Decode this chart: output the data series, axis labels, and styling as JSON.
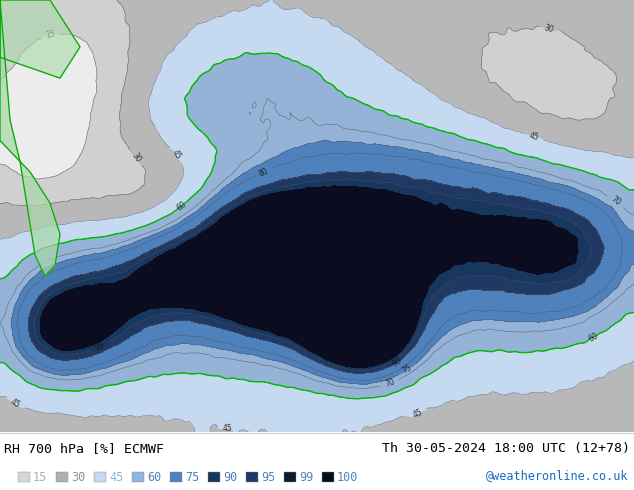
{
  "title_left": "RH 700 hPa [%] ECMWF",
  "title_right": "Th 30-05-2024 18:00 UTC (12+78)",
  "watermark": "@weatheronline.co.uk",
  "legend_values": [
    "15",
    "30",
    "45",
    "60",
    "75",
    "90",
    "95",
    "99",
    "100"
  ],
  "legend_colors": [
    "#c8c8c8",
    "#aaaaaa",
    "#b8cce4",
    "#8db4e2",
    "#4f81bd",
    "#17375e",
    "#0f243e",
    "#17375e",
    "#0c0c1e"
  ],
  "legend_text_colors": [
    "#aaaaaa",
    "#888888",
    "#8db4e2",
    "#4f81bd",
    "#4f81bd",
    "#4f81bd",
    "#4f81bd",
    "#4f81bd",
    "#4f81bd"
  ],
  "bg_color": "#ffffff",
  "title_color": "#000000",
  "watermark_color": "#1a6bbf",
  "fig_width": 6.34,
  "fig_height": 4.9,
  "dpi": 100,
  "map_colors": {
    "dry_light": "#e8e8e8",
    "dry_med": "#c8c8c8",
    "dry_dark": "#aaaaaa",
    "moist_light": "#b8cce4",
    "moist_med": "#8db4e2",
    "moist_dark": "#4472c4",
    "wet_med": "#1f497d",
    "wet_dark": "#17375e",
    "wet_vdark": "#0f243e"
  },
  "contour_color": "#555555",
  "green_line_color": "#00bb00",
  "land_fill_color": "#a8d8a8",
  "land_line_color": "#00aa00"
}
